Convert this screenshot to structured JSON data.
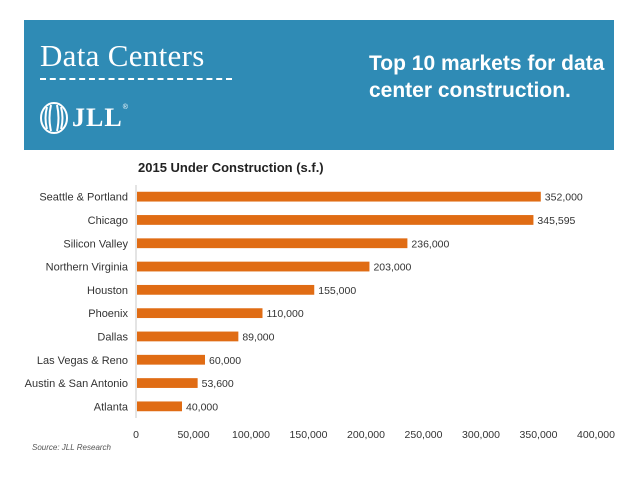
{
  "header": {
    "title": "Data Centers",
    "logo_text": "JLL",
    "logo_mark": "®",
    "subtitle": "Top 10 markets for data center construction."
  },
  "source": "Source: JLL Research",
  "colors": {
    "banner": "#2f8bb5",
    "bar": "#e06c14",
    "text": "#222222"
  },
  "chart_data": {
    "type": "bar",
    "orientation": "horizontal",
    "title": "2015 Under Construction (s.f.)",
    "xlabel": "",
    "ylabel": "",
    "categories": [
      "Seattle & Portland",
      "Chicago",
      "Silicon Valley",
      "Northern Virginia",
      "Houston",
      "Phoenix",
      "Dallas",
      "Las Vegas & Reno",
      "Austin & San Antonio",
      "Atlanta"
    ],
    "values": [
      352000,
      345595,
      236000,
      203000,
      155000,
      110000,
      89000,
      60000,
      53600,
      40000
    ],
    "value_labels": [
      "352,000",
      "345,595",
      "236,000",
      "203,000",
      "155,000",
      "110,000",
      "89,000",
      "60,000",
      "53,600",
      "40,000"
    ],
    "xlim": [
      0,
      400000
    ],
    "xticks": [
      0,
      50000,
      100000,
      150000,
      200000,
      250000,
      300000,
      350000,
      400000
    ],
    "xtick_labels": [
      "0",
      "50,000",
      "100,000",
      "150,000",
      "200,000",
      "250,000",
      "300,000",
      "350,000",
      "400,000"
    ],
    "grid": false,
    "legend": "none"
  }
}
